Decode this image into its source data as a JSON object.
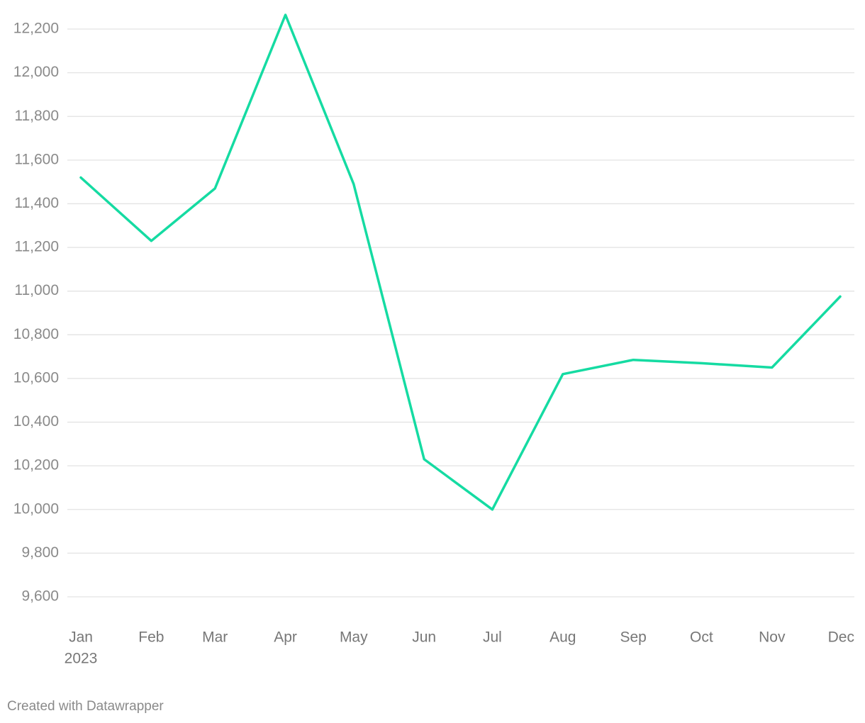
{
  "chart_data": {
    "type": "line",
    "x": [
      "2023-01",
      "2023-02",
      "2023-03",
      "2023-04",
      "2023-05",
      "2023-06",
      "2023-07",
      "2023-08",
      "2023-09",
      "2023-10",
      "2023-11",
      "2023-12"
    ],
    "series": [
      {
        "color": "#15dba2",
        "values": [
          11520,
          11230,
          11470,
          12265,
          11490,
          10230,
          10000,
          10620,
          10685,
          10670,
          10650,
          10975
        ]
      }
    ],
    "xlim": [
      "2023-01",
      "2023-12"
    ],
    "xticks": [
      {
        "value": "2023-01",
        "label": "Jan"
      },
      {
        "value": "2023-02",
        "label": "Feb"
      },
      {
        "value": "2023-03",
        "label": "Mar"
      },
      {
        "value": "2023-04",
        "label": "Apr"
      },
      {
        "value": "2023-05",
        "label": "May"
      },
      {
        "value": "2023-06",
        "label": "Jun"
      },
      {
        "value": "2023-07",
        "label": "Jul"
      },
      {
        "value": "2023-08",
        "label": "Aug"
      },
      {
        "value": "2023-09",
        "label": "Sep"
      },
      {
        "value": "2023-10",
        "label": "Oct"
      },
      {
        "value": "2023-11",
        "label": "Nov"
      },
      {
        "value": "2023-12",
        "label": "Dec"
      }
    ],
    "year_label": "2023",
    "ylim": [
      9600,
      12200
    ],
    "yticks": [
      {
        "value": 9600,
        "label": "9,600"
      },
      {
        "value": 9800,
        "label": "9,800"
      },
      {
        "value": 10000,
        "label": "10,000"
      },
      {
        "value": 10200,
        "label": "10,200"
      },
      {
        "value": 10400,
        "label": "10,400"
      },
      {
        "value": 10600,
        "label": "10,600"
      },
      {
        "value": 10800,
        "label": "10,800"
      },
      {
        "value": 11000,
        "label": "11,000"
      },
      {
        "value": 11200,
        "label": "11,200"
      },
      {
        "value": 11400,
        "label": "11,400"
      },
      {
        "value": 11600,
        "label": "11,600"
      },
      {
        "value": 11800,
        "label": "11,800"
      },
      {
        "value": 12000,
        "label": "12,000"
      },
      {
        "value": 12200,
        "label": "12,200"
      }
    ],
    "grid": true,
    "footer": "Created with Datawrapper"
  }
}
